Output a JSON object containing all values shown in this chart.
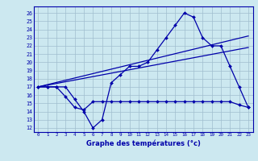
{
  "background_color": "#cce8f0",
  "grid_color": "#a0bece",
  "line_color": "#0000aa",
  "x_ticks": [
    0,
    1,
    2,
    3,
    4,
    5,
    6,
    7,
    8,
    9,
    10,
    11,
    12,
    13,
    14,
    15,
    16,
    17,
    18,
    19,
    20,
    21,
    22,
    23
  ],
  "y_ticks": [
    12,
    13,
    14,
    15,
    16,
    17,
    18,
    19,
    20,
    21,
    22,
    23,
    24,
    25,
    26
  ],
  "ylim": [
    11.5,
    26.8
  ],
  "xlim": [
    -0.5,
    23.5
  ],
  "xlabel": "Graphe des températures (°c)",
  "line1_main": {
    "x": [
      0,
      1,
      2,
      3,
      4,
      5,
      6,
      7,
      8,
      9,
      10,
      11,
      12,
      13,
      14,
      15,
      16,
      17,
      18,
      19,
      20,
      21,
      22,
      23
    ],
    "y": [
      17,
      17,
      17,
      17,
      15.5,
      14,
      12,
      13,
      17.5,
      18.5,
      19.5,
      19.5,
      20,
      21.5,
      23,
      24.5,
      26,
      25.5,
      23,
      22,
      22,
      19.5,
      17,
      14.5
    ]
  },
  "line2_low": {
    "x": [
      0,
      1,
      2,
      3,
      4,
      5,
      6,
      7,
      8,
      9,
      10,
      11,
      12,
      13,
      14,
      15,
      16,
      17,
      18,
      19,
      20,
      21,
      22,
      23
    ],
    "y": [
      17,
      17,
      17,
      15.8,
      14.5,
      14.2,
      15.2,
      15.2,
      15.2,
      15.2,
      15.2,
      15.2,
      15.2,
      15.2,
      15.2,
      15.2,
      15.2,
      15.2,
      15.2,
      15.2,
      15.2,
      15.2,
      14.8,
      14.5
    ]
  },
  "line3_upper_trend": {
    "x": [
      0,
      23
    ],
    "y": [
      17.0,
      23.2
    ]
  },
  "line4_lower_trend": {
    "x": [
      0,
      23
    ],
    "y": [
      17.0,
      21.8
    ]
  }
}
